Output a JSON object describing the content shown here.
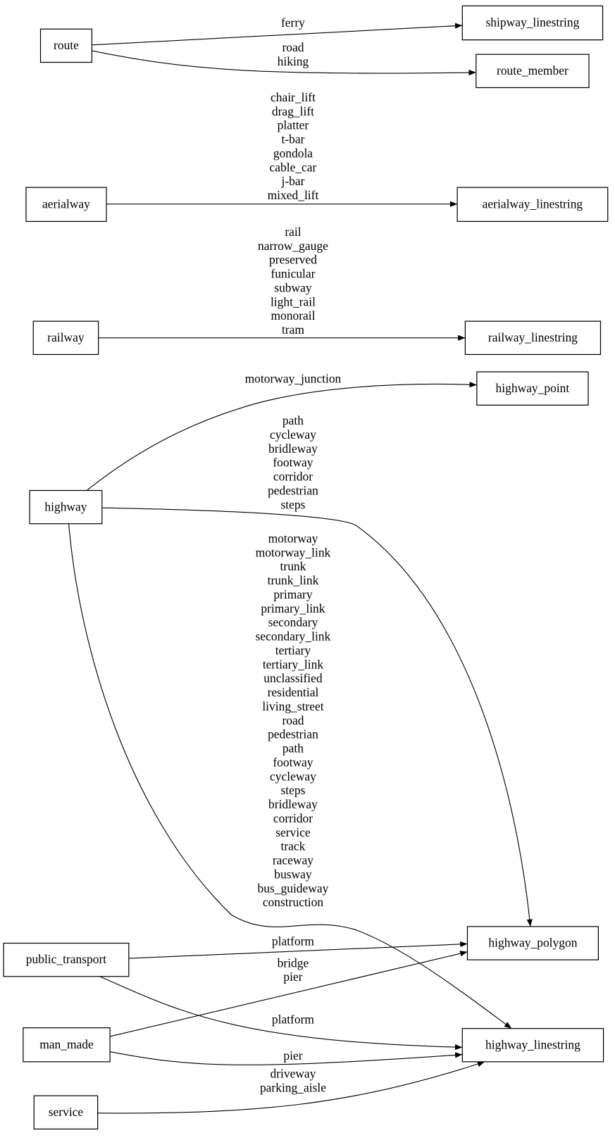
{
  "nodes": {
    "route": "route",
    "shipway_linestring": "shipway_linestring",
    "route_member": "route_member",
    "aerialway": "aerialway",
    "aerialway_linestring": "aerialway_linestring",
    "railway": "railway",
    "railway_linestring": "railway_linestring",
    "highway_point": "highway_point",
    "highway": "highway",
    "highway_polygon": "highway_polygon",
    "public_transport": "public_transport",
    "man_made": "man_made",
    "highway_linestring": "highway_linestring",
    "service": "service"
  },
  "edges": [
    {
      "from": "route",
      "to": "shipway_linestring",
      "labels": [
        "ferry"
      ]
    },
    {
      "from": "route",
      "to": "route_member",
      "labels": [
        "road",
        "hiking"
      ]
    },
    {
      "from": "aerialway",
      "to": "aerialway_linestring",
      "labels": [
        "chair_lift",
        "drag_lift",
        "platter",
        "t-bar",
        "gondola",
        "cable_car",
        "j-bar",
        "mixed_lift"
      ]
    },
    {
      "from": "railway",
      "to": "railway_linestring",
      "labels": [
        "rail",
        "narrow_gauge",
        "preserved",
        "funicular",
        "subway",
        "light_rail",
        "monorail",
        "tram"
      ]
    },
    {
      "from": "highway",
      "to": "highway_point",
      "labels": [
        "motorway_junction"
      ]
    },
    {
      "from": "highway",
      "to": "highway_polygon",
      "labels": [
        "path",
        "cycleway",
        "bridleway",
        "footway",
        "corridor",
        "pedestrian",
        "steps"
      ]
    },
    {
      "from": "highway",
      "to": "highway_linestring",
      "labels": [
        "motorway",
        "motorway_link",
        "trunk",
        "trunk_link",
        "primary",
        "primary_link",
        "secondary",
        "secondary_link",
        "tertiary",
        "tertiary_link",
        "unclassified",
        "residential",
        "living_street",
        "road",
        "pedestrian",
        "path",
        "footway",
        "cycleway",
        "steps",
        "bridleway",
        "corridor",
        "service",
        "track",
        "raceway",
        "busway",
        "bus_guideway",
        "construction"
      ]
    },
    {
      "from": "public_transport",
      "to": "highway_polygon",
      "labels": [
        "platform"
      ]
    },
    {
      "from": "public_transport",
      "to": "highway_linestring",
      "labels": [
        "platform"
      ]
    },
    {
      "from": "man_made",
      "to": "highway_polygon",
      "labels": [
        "bridge",
        "pier"
      ]
    },
    {
      "from": "man_made",
      "to": "highway_linestring",
      "labels": [
        "pier"
      ]
    },
    {
      "from": "service",
      "to": "highway_linestring",
      "labels": [
        "driveway",
        "parking_aisle"
      ]
    }
  ]
}
